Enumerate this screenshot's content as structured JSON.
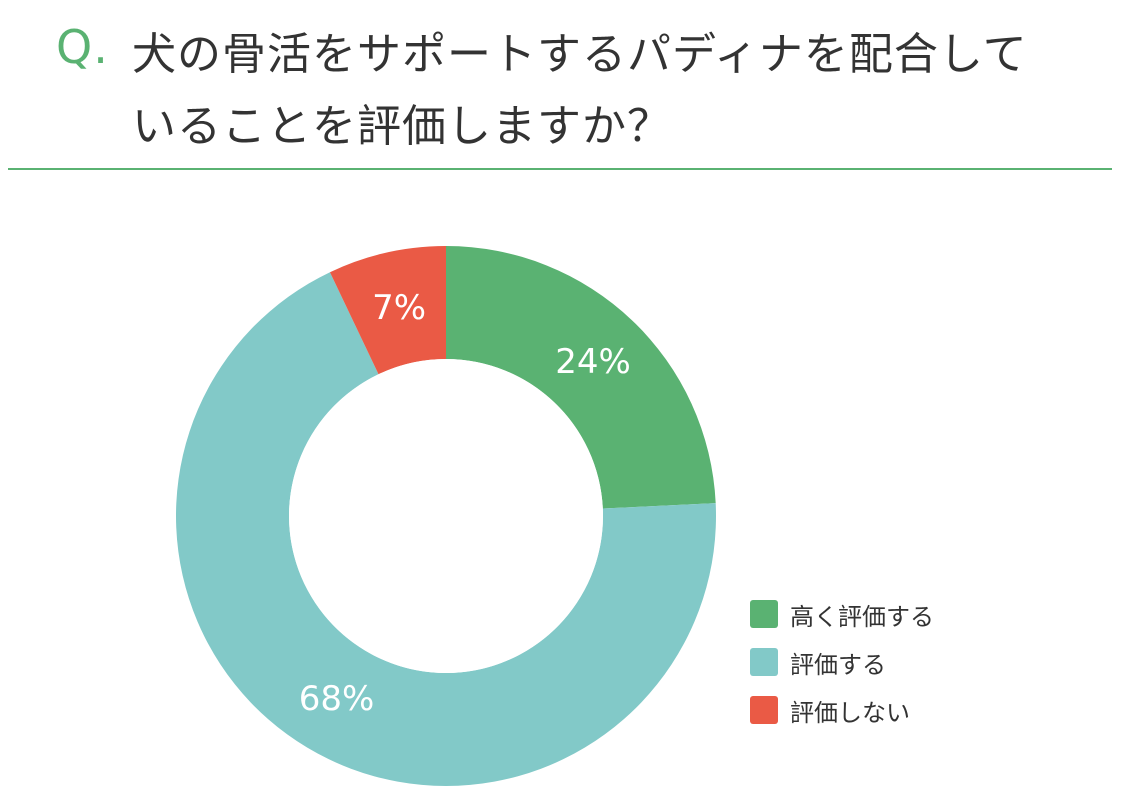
{
  "question": {
    "prefix": "Q.",
    "line1": "犬の骨活をサポートするパディナを配合して",
    "line2": "いることを評価しますか？"
  },
  "colors": {
    "accent": "#5ab272",
    "divider": "#5ab272"
  },
  "chart_data": {
    "type": "pie",
    "donut": true,
    "start_angle_deg": 0,
    "direction": "clockwise",
    "slices": [
      {
        "label": "高く評価する",
        "value": 24,
        "display": "24%",
        "color": "#5ab272"
      },
      {
        "label": "評価する",
        "value": 68,
        "display": "68%",
        "color": "#82c9c8"
      },
      {
        "label": "評価しない",
        "value": 7,
        "display": "7%",
        "color": "#ea5a45"
      }
    ],
    "legend_position": "bottom-right"
  }
}
